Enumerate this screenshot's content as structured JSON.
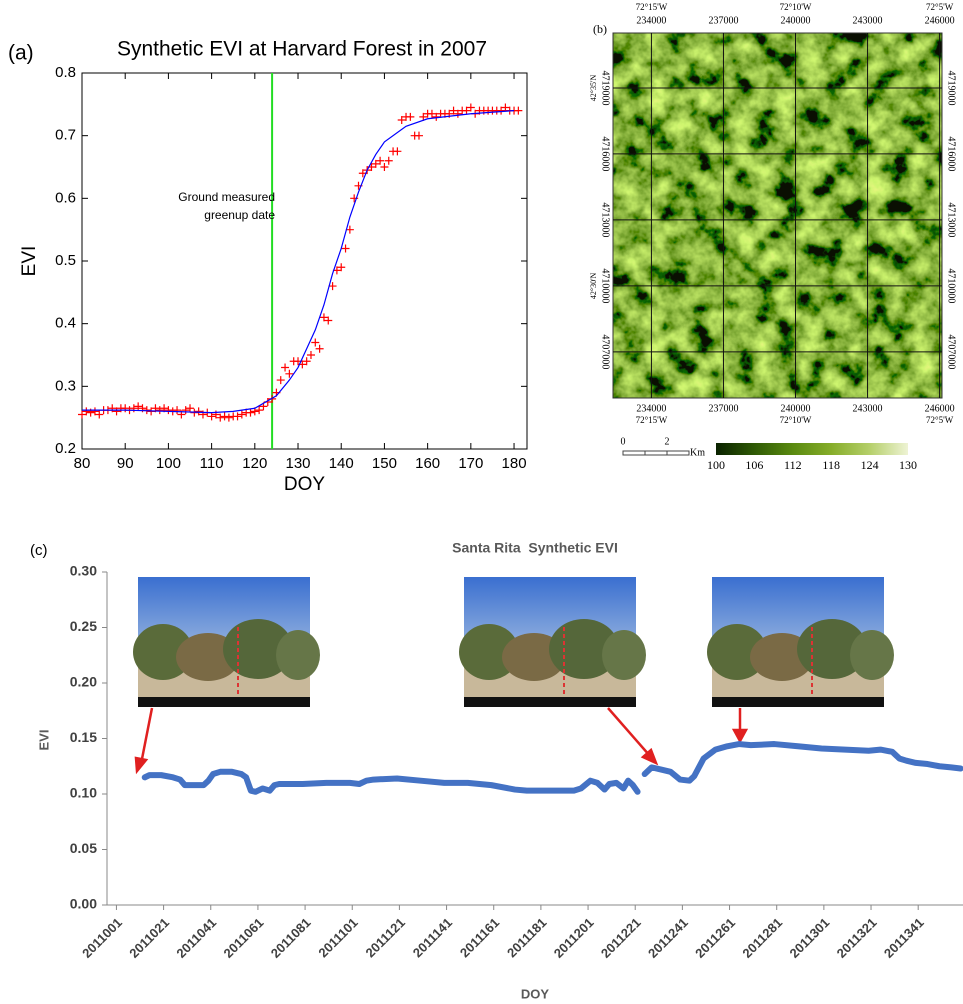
{
  "chart_data": [
    {
      "type": "scatter",
      "panel_label": "(a)",
      "title": "Synthetic EVI at Harvard Forest in 2007",
      "x_label": "DOY",
      "y_label": "EVI",
      "xlim": [
        80,
        183
      ],
      "ylim": [
        0.2,
        0.8
      ],
      "xticks": [
        80,
        90,
        100,
        110,
        120,
        130,
        140,
        150,
        160,
        170,
        180
      ],
      "yticks": [
        0.2,
        0.3,
        0.4,
        0.5,
        0.6,
        0.7,
        0.8
      ],
      "series": [
        {
          "color": "#ff0000",
          "marker": "+",
          "x": [
            80,
            81,
            82,
            83,
            84,
            85,
            86,
            87,
            88,
            89,
            90,
            91,
            92,
            93,
            94,
            95,
            96,
            97,
            98,
            99,
            100,
            101,
            102,
            103,
            104,
            105,
            106,
            107,
            108,
            109,
            110,
            111,
            112,
            113,
            114,
            115,
            116,
            117,
            118,
            119,
            120,
            121,
            122,
            123,
            124,
            125,
            126,
            127,
            128,
            129,
            130,
            131,
            132,
            133,
            134,
            135,
            136,
            137,
            138,
            139,
            140,
            141,
            142,
            143,
            144,
            145,
            146,
            147,
            148,
            149,
            150,
            151,
            152,
            153,
            154,
            155,
            156,
            157,
            158,
            159,
            160,
            161,
            162,
            163,
            164,
            165,
            166,
            167,
            168,
            169,
            170,
            171,
            172,
            173,
            174,
            175,
            176,
            177,
            178,
            179,
            180,
            181
          ],
          "values": [
            0.255,
            0.26,
            0.258,
            0.26,
            0.255,
            0.262,
            0.262,
            0.265,
            0.26,
            0.265,
            0.265,
            0.262,
            0.265,
            0.268,
            0.265,
            0.262,
            0.26,
            0.265,
            0.262,
            0.265,
            0.262,
            0.26,
            0.262,
            0.255,
            0.262,
            0.265,
            0.258,
            0.26,
            0.255,
            0.258,
            0.252,
            0.255,
            0.25,
            0.252,
            0.25,
            0.252,
            0.252,
            0.255,
            0.258,
            0.258,
            0.26,
            0.262,
            0.268,
            0.275,
            0.28,
            0.29,
            0.31,
            0.33,
            0.32,
            0.34,
            0.34,
            0.335,
            0.34,
            0.35,
            0.37,
            0.36,
            0.41,
            0.405,
            0.46,
            0.485,
            0.49,
            0.52,
            0.55,
            0.6,
            0.62,
            0.64,
            0.645,
            0.65,
            0.655,
            0.66,
            0.65,
            0.66,
            0.675,
            0.675,
            0.725,
            0.73,
            0.73,
            0.7,
            0.7,
            0.73,
            0.735,
            0.735,
            0.73,
            0.735,
            0.735,
            0.735,
            0.74,
            0.735,
            0.74,
            0.74,
            0.745,
            0.735,
            0.74,
            0.74,
            0.74,
            0.74,
            0.74,
            0.74,
            0.745,
            0.74,
            0.74,
            0.74
          ]
        },
        {
          "color": "#0000ff",
          "marker": "line",
          "x": [
            80,
            90,
            100,
            110,
            115,
            120,
            125,
            128,
            130,
            132,
            134,
            136,
            138,
            140,
            142,
            144,
            146,
            148,
            150,
            155,
            160,
            170,
            180
          ],
          "values": [
            0.262,
            0.262,
            0.26,
            0.258,
            0.26,
            0.265,
            0.285,
            0.31,
            0.33,
            0.36,
            0.39,
            0.43,
            0.48,
            0.52,
            0.57,
            0.61,
            0.645,
            0.67,
            0.69,
            0.715,
            0.727,
            0.735,
            0.74
          ]
        }
      ],
      "vline": {
        "x": 124,
        "color": "#22dd22"
      },
      "annotation": [
        "Ground measured",
        "greenup date"
      ]
    },
    {
      "type": "map",
      "panel_label": "(b)",
      "xlim": [
        232400,
        246100
      ],
      "ylim": [
        4704900,
        4721500
      ],
      "xticks": [
        234000,
        237000,
        240000,
        243000,
        246000
      ],
      "yticks": [
        4707000,
        4710000,
        4713000,
        4716000,
        4719000
      ],
      "lon_ticks": [
        {
          "value": 234000,
          "label": "72°15'W"
        },
        {
          "value": 240000,
          "label": "72°10'W"
        },
        {
          "value": 246000,
          "label": "72°5'W"
        }
      ],
      "lat_ticks": [
        {
          "value": 4719000,
          "label": "42°35'N"
        },
        {
          "value": 4710000,
          "label": "42°30'N"
        }
      ],
      "grid": true,
      "scale_bar": {
        "ticks": [
          0,
          2
        ],
        "unit": "Km"
      },
      "colorbar": {
        "ticks": [
          100,
          106,
          112,
          118,
          124,
          130
        ],
        "colors": [
          "#0a2200",
          "#2f5a05",
          "#5a8a10",
          "#86ad2a",
          "#b5cf6a",
          "#eef3d4"
        ]
      }
    },
    {
      "type": "line",
      "panel_label": "(c)",
      "title": "Santa Rita  Synthetic EVI",
      "x_label": "DOY",
      "y_label": "EVI",
      "xlim": [
        2010997,
        2011360
      ],
      "ylim": [
        0,
        0.3
      ],
      "xticks": [
        2011001,
        2011021,
        2011041,
        2011061,
        2011081,
        2011101,
        2011121,
        2011141,
        2011161,
        2011181,
        2011201,
        2011221,
        2011241,
        2011261,
        2011281,
        2011301,
        2011321,
        2011341
      ],
      "yticks": [
        {
          "value": 0,
          "label": "0.00"
        },
        {
          "value": 0.05,
          "label": "0.05"
        },
        {
          "value": 0.1,
          "label": "0.10"
        },
        {
          "value": 0.15,
          "label": "0.15"
        },
        {
          "value": 0.2,
          "label": "0.20"
        },
        {
          "value": 0.25,
          "label": "0.25"
        },
        {
          "value": 0.3,
          "label": "0.30"
        }
      ],
      "series": [
        {
          "color": "#4472c4",
          "x": [
            2011013,
            2011015,
            2011020,
            2011025,
            2011028,
            2011030,
            2011035,
            2011038,
            2011040,
            2011042,
            2011045,
            2011050,
            2011054,
            2011056,
            2011058,
            2011060,
            2011063,
            2011066,
            2011068,
            2011070,
            2011080,
            2011090,
            2011100,
            2011104,
            2011107,
            2011110,
            2011120,
            2011130,
            2011140,
            2011150,
            2011160,
            2011170,
            2011175,
            2011180,
            2011190,
            2011195,
            2011198,
            2011202,
            2011205,
            2011208,
            2011210,
            2011213,
            2011216,
            2011218,
            2011220,
            2011222,
            2011223,
            2011225,
            2011228,
            2011232,
            2011236,
            2011240,
            2011244,
            2011246,
            2011250,
            2011255,
            2011260,
            2011265,
            2011270,
            2011280,
            2011290,
            2011300,
            2011310,
            2011320,
            2011325,
            2011330,
            2011333,
            2011336,
            2011340,
            2011345,
            2011350,
            2011355,
            2011359
          ],
          "values": [
            0.115,
            0.117,
            0.117,
            0.115,
            0.113,
            0.108,
            0.108,
            0.108,
            0.112,
            0.118,
            0.12,
            0.12,
            0.118,
            0.115,
            0.103,
            0.102,
            0.105,
            0.103,
            0.108,
            0.109,
            0.109,
            0.11,
            0.11,
            0.109,
            0.112,
            0.113,
            0.114,
            0.112,
            0.11,
            0.11,
            0.108,
            0.104,
            0.103,
            0.103,
            0.103,
            0.103,
            0.105,
            0.112,
            0.11,
            0.104,
            0.109,
            0.11,
            0.105,
            0.112,
            0.108,
            0.102,
            null,
            0.118,
            0.124,
            0.122,
            0.12,
            0.113,
            0.112,
            0.116,
            0.132,
            0.14,
            0.143,
            0.145,
            0.144,
            0.145,
            0.143,
            0.141,
            0.14,
            0.139,
            0.14,
            0.138,
            0.132,
            0.13,
            0.128,
            0.127,
            0.125,
            0.124,
            0.123
          ]
        }
      ]
    }
  ]
}
